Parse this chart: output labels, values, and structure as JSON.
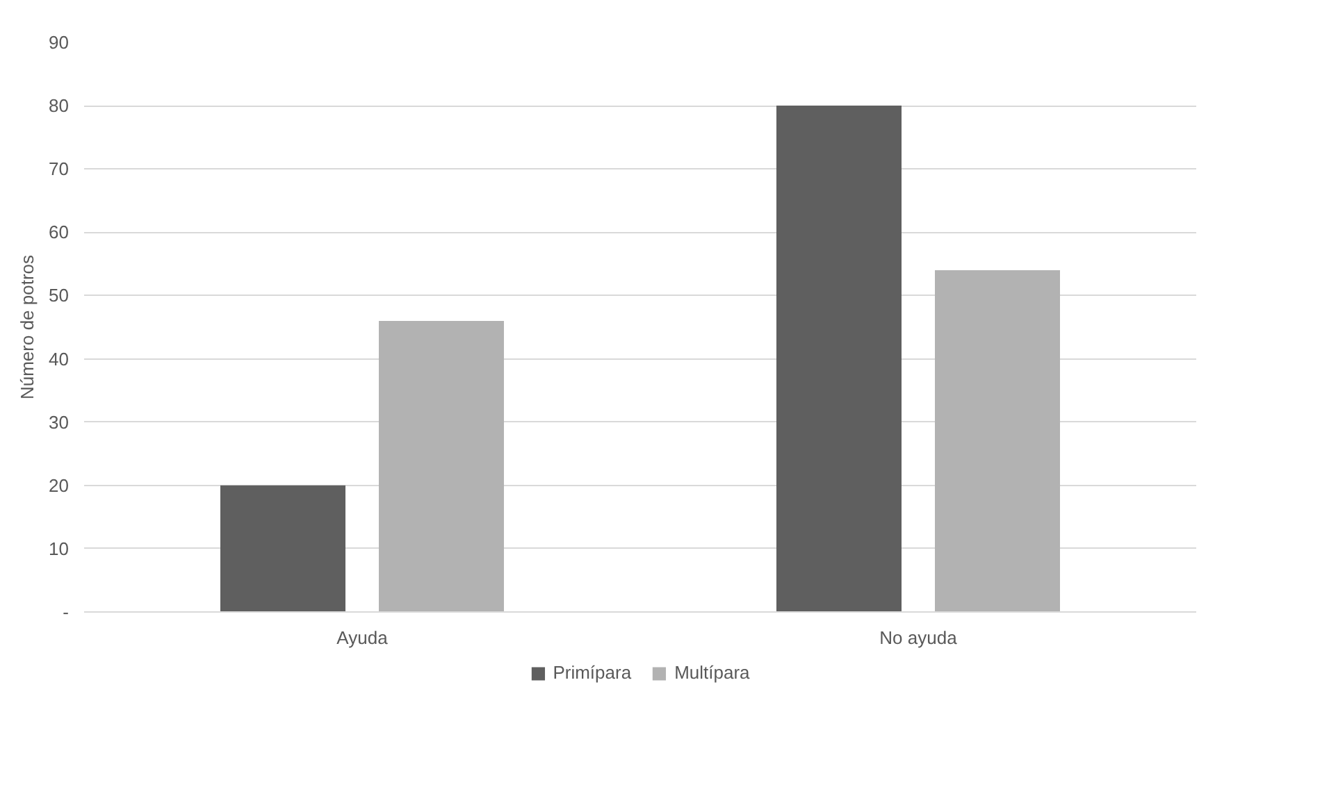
{
  "chart_data": {
    "type": "bar",
    "ylabel": "Número de potros",
    "categories": [
      "Ayuda",
      "No ayuda"
    ],
    "series": [
      {
        "name": "Primípara",
        "color": "#5f5f5f",
        "values": [
          20,
          80
        ]
      },
      {
        "name": "Multípara",
        "color": "#b2b2b2",
        "values": [
          46,
          54
        ]
      }
    ],
    "ylim": [
      0,
      90
    ],
    "yticks": [
      {
        "value": 0,
        "label": "-"
      },
      10,
      20,
      30,
      40,
      50,
      60,
      70,
      80,
      90
    ],
    "grid": "y",
    "legend": "bottom"
  }
}
